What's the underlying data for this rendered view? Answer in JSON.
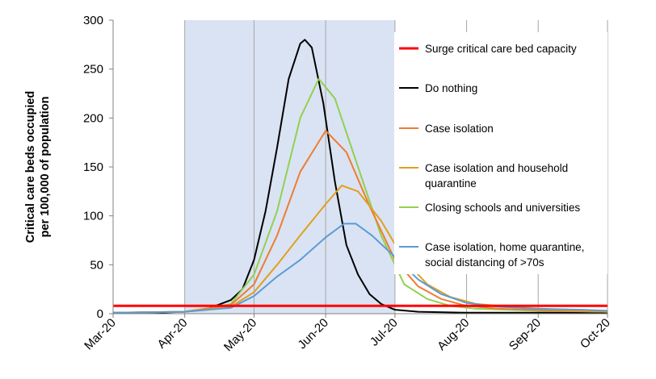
{
  "chart_data": {
    "type": "line",
    "ylabel": [
      "Critical care beds occupied",
      "per 100,000 of population"
    ],
    "xlabel": "",
    "title": "",
    "ylim": [
      0,
      300
    ],
    "yticks": [
      0,
      50,
      100,
      150,
      200,
      250,
      300
    ],
    "xlim": [
      "2020-03-01",
      "2020-10-01"
    ],
    "xtick_labels": [
      "Mar-20",
      "Apr-20",
      "May-20",
      "Jun-20",
      "Jul-20",
      "Aug-20",
      "Sep-20",
      "Oct-20"
    ],
    "xtick_dates": [
      "2020-03-01",
      "2020-04-01",
      "2020-05-01",
      "2020-06-01",
      "2020-07-01",
      "2020-08-01",
      "2020-09-01",
      "2020-10-01"
    ],
    "shaded_region": {
      "start": "2020-04-01",
      "end": "2020-07-01",
      "color": "#dae3f3"
    },
    "capacity_line": {
      "name": "Surge critical care bed capacity",
      "value": 8,
      "color": "#ff0000"
    },
    "legend_position": "right",
    "grid": "vertical",
    "series": [
      {
        "name": "Do nothing",
        "color": "#000000",
        "points": [
          [
            "2020-03-01",
            1
          ],
          [
            "2020-03-21",
            1
          ],
          [
            "2020-04-01",
            2
          ],
          [
            "2020-04-11",
            5
          ],
          [
            "2020-04-21",
            14
          ],
          [
            "2020-04-26",
            25
          ],
          [
            "2020-05-01",
            55
          ],
          [
            "2020-05-06",
            105
          ],
          [
            "2020-05-11",
            170
          ],
          [
            "2020-05-16",
            240
          ],
          [
            "2020-05-21",
            276
          ],
          [
            "2020-05-23",
            280
          ],
          [
            "2020-05-26",
            272
          ],
          [
            "2020-05-31",
            215
          ],
          [
            "2020-06-05",
            135
          ],
          [
            "2020-06-10",
            70
          ],
          [
            "2020-06-15",
            40
          ],
          [
            "2020-06-20",
            20
          ],
          [
            "2020-06-25",
            10
          ],
          [
            "2020-07-01",
            4
          ],
          [
            "2020-07-11",
            2
          ],
          [
            "2020-07-31",
            1
          ],
          [
            "2020-10-01",
            1
          ]
        ]
      },
      {
        "name": "Closing schools and universities",
        "color": "#92d050",
        "points": [
          [
            "2020-03-01",
            1
          ],
          [
            "2020-04-01",
            2
          ],
          [
            "2020-04-11",
            4
          ],
          [
            "2020-04-21",
            10
          ],
          [
            "2020-05-01",
            40
          ],
          [
            "2020-05-11",
            105
          ],
          [
            "2020-05-21",
            200
          ],
          [
            "2020-05-29",
            240
          ],
          [
            "2020-06-05",
            220
          ],
          [
            "2020-06-15",
            150
          ],
          [
            "2020-06-25",
            80
          ],
          [
            "2020-07-05",
            30
          ],
          [
            "2020-07-15",
            15
          ],
          [
            "2020-07-25",
            8
          ],
          [
            "2020-08-05",
            5
          ],
          [
            "2020-09-01",
            3
          ],
          [
            "2020-10-01",
            2
          ]
        ]
      },
      {
        "name": "Case isolation",
        "color": "#ed7d31",
        "points": [
          [
            "2020-03-01",
            1
          ],
          [
            "2020-04-01",
            2
          ],
          [
            "2020-04-21",
            9
          ],
          [
            "2020-05-01",
            30
          ],
          [
            "2020-05-11",
            80
          ],
          [
            "2020-05-21",
            145
          ],
          [
            "2020-06-01",
            187
          ],
          [
            "2020-06-10",
            165
          ],
          [
            "2020-06-20",
            110
          ],
          [
            "2020-07-01",
            55
          ],
          [
            "2020-07-11",
            28
          ],
          [
            "2020-07-21",
            15
          ],
          [
            "2020-08-01",
            8
          ],
          [
            "2020-08-15",
            5
          ],
          [
            "2020-09-10",
            3
          ],
          [
            "2020-10-01",
            2
          ]
        ]
      },
      {
        "name": "Case isolation and household quarantine",
        "color": "#e0a020",
        "points": [
          [
            "2020-03-01",
            1
          ],
          [
            "2020-04-01",
            2
          ],
          [
            "2020-04-21",
            7
          ],
          [
            "2020-05-01",
            22
          ],
          [
            "2020-05-11",
            50
          ],
          [
            "2020-05-21",
            80
          ],
          [
            "2020-06-01",
            112
          ],
          [
            "2020-06-08",
            131
          ],
          [
            "2020-06-15",
            125
          ],
          [
            "2020-06-25",
            95
          ],
          [
            "2020-07-05",
            55
          ],
          [
            "2020-07-15",
            30
          ],
          [
            "2020-07-25",
            17
          ],
          [
            "2020-08-05",
            10
          ],
          [
            "2020-08-20",
            7
          ],
          [
            "2020-09-10",
            4
          ],
          [
            "2020-10-01",
            2
          ]
        ]
      },
      {
        "name": "Case isolation, home quarantine, social distancing of >70s",
        "color": "#5b9bd5",
        "points": [
          [
            "2020-03-01",
            1
          ],
          [
            "2020-04-01",
            2
          ],
          [
            "2020-04-21",
            6
          ],
          [
            "2020-05-01",
            18
          ],
          [
            "2020-05-11",
            38
          ],
          [
            "2020-05-21",
            55
          ],
          [
            "2020-06-01",
            78
          ],
          [
            "2020-06-09",
            92
          ],
          [
            "2020-06-14",
            92
          ],
          [
            "2020-06-21",
            80
          ],
          [
            "2020-07-01",
            58
          ],
          [
            "2020-07-11",
            35
          ],
          [
            "2020-07-21",
            20
          ],
          [
            "2020-08-01",
            11
          ],
          [
            "2020-08-15",
            7
          ],
          [
            "2020-09-01",
            5
          ],
          [
            "2020-09-20",
            4
          ],
          [
            "2020-10-01",
            3
          ]
        ]
      }
    ],
    "legend": [
      {
        "label_lines": [
          "Surge critical care bed capacity"
        ],
        "color": "#ff0000"
      },
      {
        "label_lines": [
          "Do nothing"
        ],
        "color": "#000000"
      },
      {
        "label_lines": [
          "Case isolation"
        ],
        "color": "#ed7d31"
      },
      {
        "label_lines": [
          "Case isolation and household",
          "quarantine"
        ],
        "color": "#e0a020"
      },
      {
        "label_lines": [
          "Closing schools and universities"
        ],
        "color": "#92d050"
      },
      {
        "label_lines": [
          "Case isolation, home quarantine,",
          "social distancing of >70s"
        ],
        "color": "#5b9bd5"
      }
    ]
  }
}
